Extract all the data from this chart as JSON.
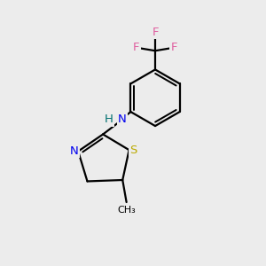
{
  "background_color": "#ececec",
  "bond_color": "#000000",
  "bond_width": 1.6,
  "atom_colors": {
    "F": "#e060a0",
    "N": "#0000ee",
    "S": "#bbaa00",
    "H": "#007070",
    "C": "#000000"
  },
  "figsize": [
    3.0,
    3.0
  ],
  "dpi": 100,
  "xlim": [
    0,
    10
  ],
  "ylim": [
    0,
    10
  ],
  "font_size_atom": 9.5,
  "font_size_methyl": 8.0
}
